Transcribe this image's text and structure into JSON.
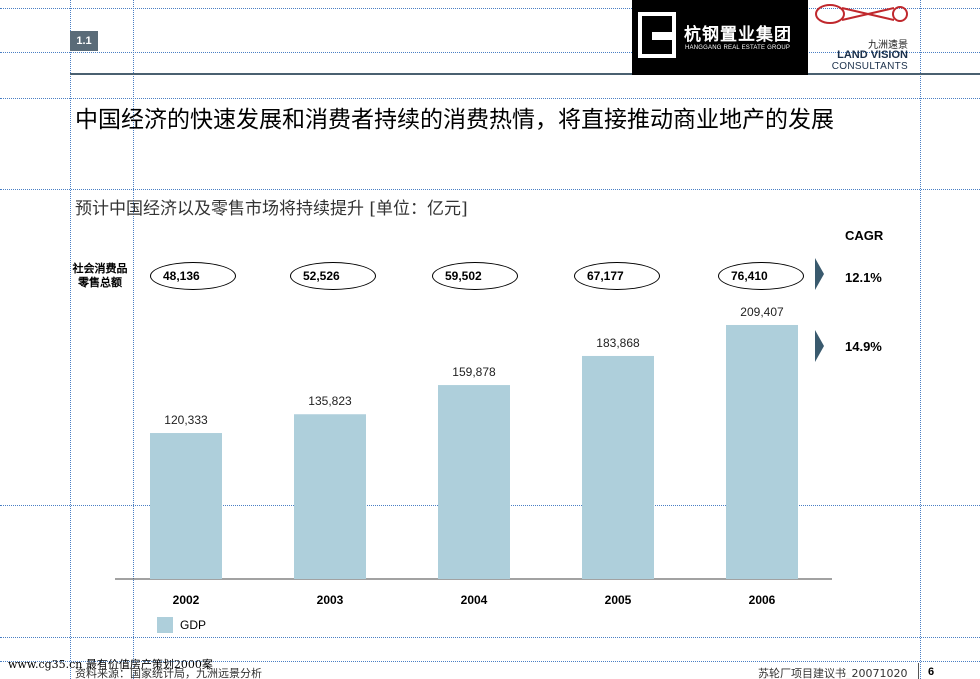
{
  "header": {
    "section": "1.1",
    "logo_hg": {
      "cn": "杭钢置业集团",
      "en": "HANGGANG REAL ESTATE GROUP"
    },
    "logo_lv": {
      "cn": "九洲遠景",
      "en1": "LAND VISION",
      "en2": "CONSULTANTS"
    }
  },
  "title": "中国经济的快速发展和消费者持续的消费热情，将直接推动商业地产的发展",
  "subtitle": "预计中国经济以及零售市场将持续提升 [单位：亿元]",
  "retail": {
    "label_line1": "社会消费品",
    "label_line2": "零售总额",
    "values": [
      "48,136",
      "52,526",
      "59,502",
      "67,177",
      "76,410"
    ]
  },
  "cagr": {
    "header": "CAGR",
    "retail": "12.1%",
    "gdp": "14.9%"
  },
  "chart_data": {
    "type": "bar",
    "categories": [
      "2002",
      "2003",
      "2004",
      "2005",
      "2006"
    ],
    "series": [
      {
        "name": "GDP",
        "values": [
          120333,
          135823,
          159878,
          183868,
          209407
        ]
      }
    ],
    "data_labels": [
      "120,333",
      "135,823",
      "159,878",
      "183,868",
      "209,407"
    ],
    "ylim": [
      0,
      230000
    ],
    "grid": false,
    "legend": "bottom-left"
  },
  "colors": {
    "bar": "#aecfdb",
    "arrow": "#3a5a6e",
    "guide": "#4a7fc4"
  },
  "footer": {
    "watermark": "www.cg35.cn 最有价值房产策划2000案",
    "source": "资料来源：国家统计局，九洲远景分析",
    "doc": "苏轮厂项目建议书_20071020",
    "page": "6"
  }
}
